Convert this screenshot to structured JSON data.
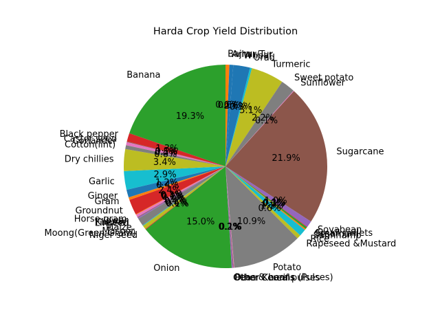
{
  "chart_data": {
    "type": "pie",
    "title": "Harda Crop Yield Distribution",
    "start_angle_deg": 90,
    "direction": "clockwise",
    "percent_format": "one-decimal",
    "slices": [
      {
        "label": "Bajra",
        "value": 0.6,
        "color": "#ff7f0e"
      },
      {
        "label": "Arhar/Tur",
        "value": 0.6,
        "color": "#1f77b4"
      },
      {
        "label": "Wheat",
        "value": 2.6,
        "color": "#1f77b4"
      },
      {
        "label": "Urad",
        "value": 0.3,
        "color": "#17becf"
      },
      {
        "label": "Turmeric",
        "value": 5.1,
        "color": "#bcbd22"
      },
      {
        "label": "Sweet potato",
        "value": 2.2,
        "color": "#7f7f7f"
      },
      {
        "label": "Sunflower",
        "value": 0.1,
        "color": "#e377c2"
      },
      {
        "label": "Sugarcane",
        "value": 21.9,
        "color": "#8c564b"
      },
      {
        "label": "Soyabean",
        "value": 1.0,
        "color": "#9467bd"
      },
      {
        "label": "Small millets",
        "value": 0.1,
        "color": "#d62728"
      },
      {
        "label": "Sesamum",
        "value": 0.3,
        "color": "#2ca02c"
      },
      {
        "label": "Sannhamp",
        "value": 0.2,
        "color": "#ff7f0e"
      },
      {
        "label": "Rice",
        "value": 1.1,
        "color": "#17becf"
      },
      {
        "label": "Rapeseed &Mustard",
        "value": 0.6,
        "color": "#bcbd22"
      },
      {
        "label": "Potato",
        "value": 10.9,
        "color": "#7f7f7f"
      },
      {
        "label": "Peas & beans (Pulses)",
        "value": 0.1,
        "color": "#e377c2"
      },
      {
        "label": "Other Kharif pulses",
        "value": 0.1,
        "color": "#8c564b"
      },
      {
        "label": "Other Cereals",
        "value": 0.2,
        "color": "#9467bd"
      },
      {
        "label": "Onion",
        "value": 15.0,
        "color": "#2ca02c"
      },
      {
        "label": "Niger seed",
        "value": 0.1,
        "color": "#d62728"
      },
      {
        "label": "Moong(Green Gram)",
        "value": 0.6,
        "color": "#bcbd22"
      },
      {
        "label": "Masoor",
        "value": 0.1,
        "color": "#17becf"
      },
      {
        "label": "Maize",
        "value": 1.2,
        "color": "#7f7f7f"
      },
      {
        "label": "Linseed",
        "value": 0.2,
        "color": "#9467bd"
      },
      {
        "label": "Khesari",
        "value": 0.1,
        "color": "#8c564b"
      },
      {
        "label": "Jowar",
        "value": 0.4,
        "color": "#e377c2"
      },
      {
        "label": "Horse-gram",
        "value": 0.1,
        "color": "#ff7f0e"
      },
      {
        "label": "Groundnut",
        "value": 2.4,
        "color": "#d62728"
      },
      {
        "label": "Gram",
        "value": 0.4,
        "color": "#ff7f0e"
      },
      {
        "label": "Ginger",
        "value": 1.2,
        "color": "#1f77b4"
      },
      {
        "label": "Garlic",
        "value": 2.9,
        "color": "#17becf"
      },
      {
        "label": "Dry chillies",
        "value": 3.4,
        "color": "#bcbd22"
      },
      {
        "label": "Cotton(lint)",
        "value": 0.6,
        "color": "#7f7f7f"
      },
      {
        "label": "Coriander",
        "value": 0.5,
        "color": "#e377c2"
      },
      {
        "label": "Castor seed",
        "value": 0.1,
        "color": "#8c564b"
      },
      {
        "label": "Black pepper",
        "value": 1.3,
        "color": "#d62728"
      },
      {
        "label": "Banana",
        "value": 19.3,
        "color": "#2ca02c"
      }
    ]
  }
}
